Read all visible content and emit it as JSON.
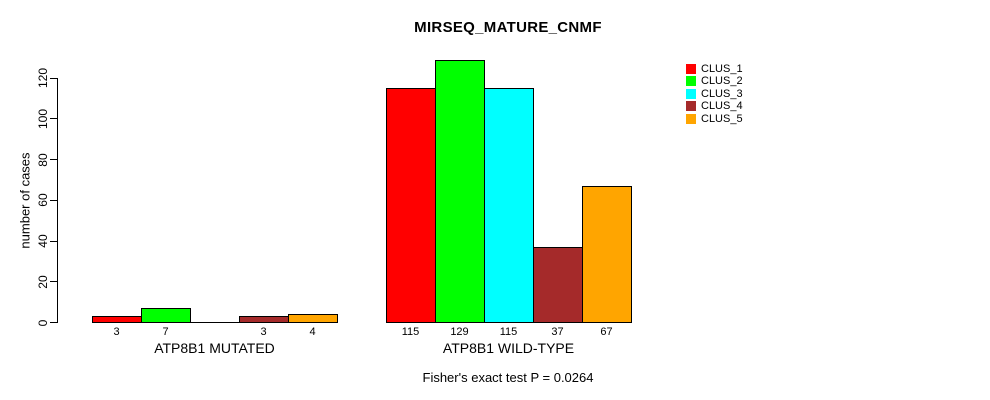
{
  "figure": {
    "title": "MIRSEQ_MATURE_CNMF",
    "caption": "Fisher's exact test P = 0.0264"
  },
  "chart_data": {
    "type": "bar",
    "title": "MIRSEQ_MATURE_CNMF",
    "xlabel": "",
    "ylabel": "number of cases",
    "ylim": [
      0,
      130
    ],
    "yticks": [
      0,
      20,
      40,
      60,
      80,
      100,
      120
    ],
    "grid": false,
    "legend_position": "top-right",
    "legend": [
      {
        "label": "CLUS_1",
        "color": "#ff0000"
      },
      {
        "label": "CLUS_2",
        "color": "#00ff00"
      },
      {
        "label": "CLUS_3",
        "color": "#00ffff"
      },
      {
        "label": "CLUS_4",
        "color": "#a52a2a"
      },
      {
        "label": "CLUS_5",
        "color": "#ffa500"
      }
    ],
    "groups": [
      {
        "label": "ATP8B1 MUTATED",
        "values": [
          3,
          7,
          0,
          3,
          4
        ]
      },
      {
        "label": "ATP8B1 WILD-TYPE",
        "values": [
          115,
          129,
          115,
          37,
          67
        ]
      }
    ],
    "annotation": "Fisher's exact test P = 0.0264"
  }
}
